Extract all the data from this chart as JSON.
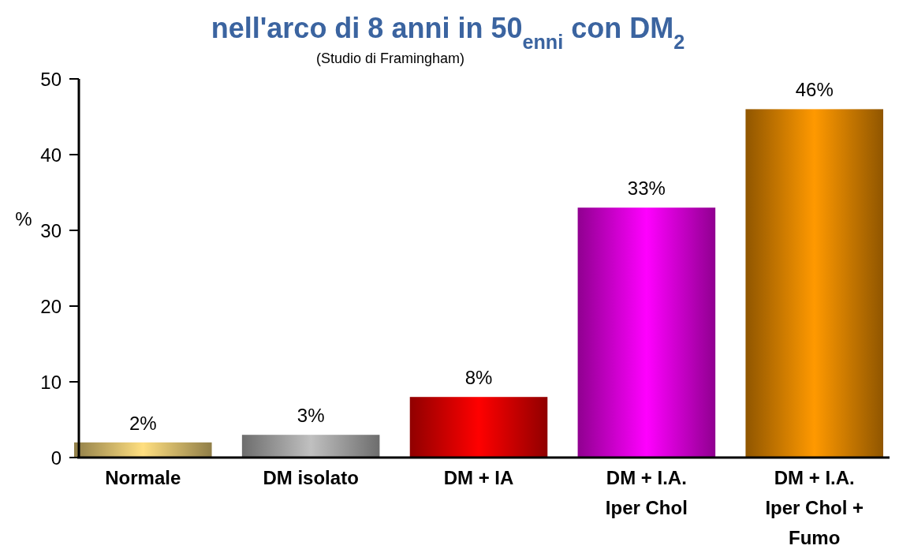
{
  "chart_data": {
    "type": "bar",
    "title": "nell'arco di 8 anni in 50$_{enni}$ con DM$_{2}$",
    "subtitle": "(Studio di Framingham)",
    "ylabel": "%",
    "categories": [
      "Normale",
      "DM isolato",
      "DM + IA",
      "DM + I.A. Iper Chol",
      "DM + I.A. Iper Chol + Fumo"
    ],
    "values": [
      2,
      3,
      8,
      33,
      46
    ],
    "colors": [
      "#ffdf80",
      "#c0c0c0",
      "#ff0000",
      "#ff00ff",
      "#ff9900"
    ],
    "value_labels": [
      "2%",
      "3%",
      "8%",
      "33%",
      "46%"
    ],
    "ylim": [
      0,
      50
    ],
    "yticks": [
      0,
      10,
      20,
      30,
      40,
      50
    ],
    "grid": false
  }
}
